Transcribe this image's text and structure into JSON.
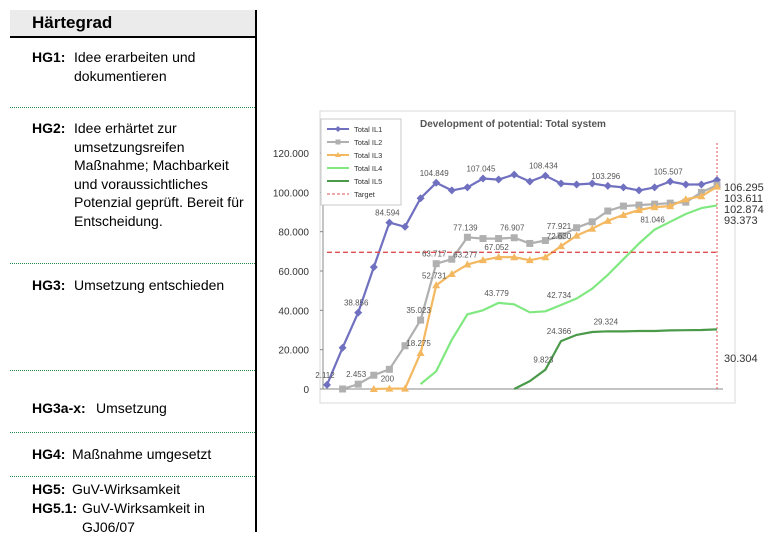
{
  "panel": {
    "title": "Härtegrad",
    "rows": [
      {
        "code": "HG1:",
        "text": "Idee erarbeiten und dokumentieren"
      },
      {
        "code": "HG2:",
        "text": "Idee erhärtet zur umsetzungsreifen Maßnahme; Machbarkeit und voraussichtliches Potenzial geprüft. Bereit für Entscheidung."
      },
      {
        "code": "HG3:",
        "text": "Umsetzung entschieden"
      },
      {
        "code": "HG3a-x:",
        "text": "Umsetzung"
      },
      {
        "code": "HG4:",
        "text": "Maßnahme umgesetzt"
      },
      {
        "code": "HG5:",
        "text": "GuV-Wirksamkeit"
      },
      {
        "code": "HG5.1:",
        "text": "GuV-Wirksamkeit in GJ06/07"
      }
    ]
  },
  "chart_data": {
    "type": "line",
    "title": "Development of potential: Total system",
    "ylim": [
      0,
      120000
    ],
    "yticks": [
      "0",
      "20.000",
      "40.000",
      "60.000",
      "80.000",
      "100.000",
      "120.000"
    ],
    "legend_position": "top-left",
    "grid": false,
    "series": [
      {
        "name": "Total IL1",
        "color": "#7070c0",
        "marker": "diamond",
        "values": [
          2112,
          21000,
          38856,
          62000,
          84594,
          82500,
          97000,
          104849,
          101000,
          102500,
          107045,
          106500,
          109000,
          105500,
          108434,
          104500,
          104000,
          104500,
          103296,
          102500,
          101000,
          102500,
          105507,
          104000,
          104000,
          106295
        ]
      },
      {
        "name": "Total IL2",
        "color": "#b0b0b0",
        "marker": "square",
        "values": [
          null,
          0,
          2453,
          7000,
          10000,
          22000,
          35023,
          63717,
          66000,
          77139,
          76500,
          76500,
          76907,
          74000,
          75500,
          77921,
          82000,
          85000,
          90500,
          93000,
          93500,
          94000,
          94500,
          95000,
          100000,
          103611
        ]
      },
      {
        "name": "Total IL3",
        "color": "#f4b860",
        "marker": "triangle",
        "values": [
          null,
          null,
          null,
          0,
          200,
          200,
          18275,
          52731,
          58500,
          63277,
          65500,
          67052,
          67000,
          65500,
          67000,
          72630,
          78000,
          81500,
          85500,
          88500,
          91000,
          92500,
          93000,
          96500,
          98000,
          102874
        ]
      },
      {
        "name": "Total IL4",
        "color": "#80e880",
        "marker": "none",
        "values": [
          null,
          null,
          null,
          null,
          null,
          null,
          2500,
          9000,
          25000,
          38000,
          40000,
          43779,
          43000,
          39000,
          39500,
          42734,
          46000,
          51000,
          58000,
          66000,
          74000,
          81046,
          85000,
          89000,
          92000,
          93373
        ]
      },
      {
        "name": "Total IL5",
        "color": "#4a9a4a",
        "marker": "none",
        "values": [
          null,
          null,
          null,
          null,
          null,
          null,
          null,
          null,
          null,
          null,
          null,
          null,
          0,
          4000,
          9823,
          24366,
          27500,
          29000,
          29324,
          29300,
          29500,
          29500,
          29800,
          29900,
          30000,
          30304
        ]
      },
      {
        "name": "Target",
        "color": "#e05050",
        "marker": "none",
        "dash": true,
        "values": [
          69500,
          69500,
          69500,
          69500,
          69500,
          69500,
          69500,
          69500,
          69500,
          69500,
          69500,
          69500,
          69500,
          69500,
          69500,
          69500,
          69500,
          69500,
          69500,
          69500,
          69500,
          69500,
          69500,
          69500,
          69500,
          69500
        ]
      }
    ],
    "data_labels": [
      {
        "series": 0,
        "index": 0,
        "text": "2.112"
      },
      {
        "series": 0,
        "index": 2,
        "text": "38.856"
      },
      {
        "series": 0,
        "index": 4,
        "text": "84.594"
      },
      {
        "series": 0,
        "index": 7,
        "text": "104.849"
      },
      {
        "series": 0,
        "index": 10,
        "text": "107.045"
      },
      {
        "series": 0,
        "index": 14,
        "text": "108.434"
      },
      {
        "series": 0,
        "index": 18,
        "text": "103.296"
      },
      {
        "series": 0,
        "index": 22,
        "text": "105.507"
      },
      {
        "series": 1,
        "index": 2,
        "text": "2.453"
      },
      {
        "series": 1,
        "index": 6,
        "text": "35.023"
      },
      {
        "series": 1,
        "index": 7,
        "text": "63.717"
      },
      {
        "series": 1,
        "index": 9,
        "text": "77.139"
      },
      {
        "series": 1,
        "index": 12,
        "text": "76.907"
      },
      {
        "series": 1,
        "index": 15,
        "text": "77.921"
      },
      {
        "series": 2,
        "index": 4,
        "text": "200"
      },
      {
        "series": 2,
        "index": 6,
        "text": "18.275"
      },
      {
        "series": 2,
        "index": 7,
        "text": "52.731"
      },
      {
        "series": 2,
        "index": 9,
        "text": "63.277"
      },
      {
        "series": 2,
        "index": 11,
        "text": "67.052"
      },
      {
        "series": 2,
        "index": 15,
        "text": "72.630"
      },
      {
        "series": 3,
        "index": 11,
        "text": "43.779"
      },
      {
        "series": 3,
        "index": 15,
        "text": "42.734"
      },
      {
        "series": 3,
        "index": 21,
        "text": "81.046"
      },
      {
        "series": 4,
        "index": 14,
        "text": "9.823"
      },
      {
        "series": 4,
        "index": 15,
        "text": "24.366"
      },
      {
        "series": 4,
        "index": 18,
        "text": "29.324"
      }
    ],
    "end_labels": [
      {
        "series": 0,
        "text": "106.295"
      },
      {
        "series": 1,
        "text": "103.611"
      },
      {
        "series": 2,
        "text": "102.874"
      },
      {
        "series": 3,
        "text": "93.373"
      },
      {
        "series": 4,
        "text": "30.304"
      }
    ]
  }
}
